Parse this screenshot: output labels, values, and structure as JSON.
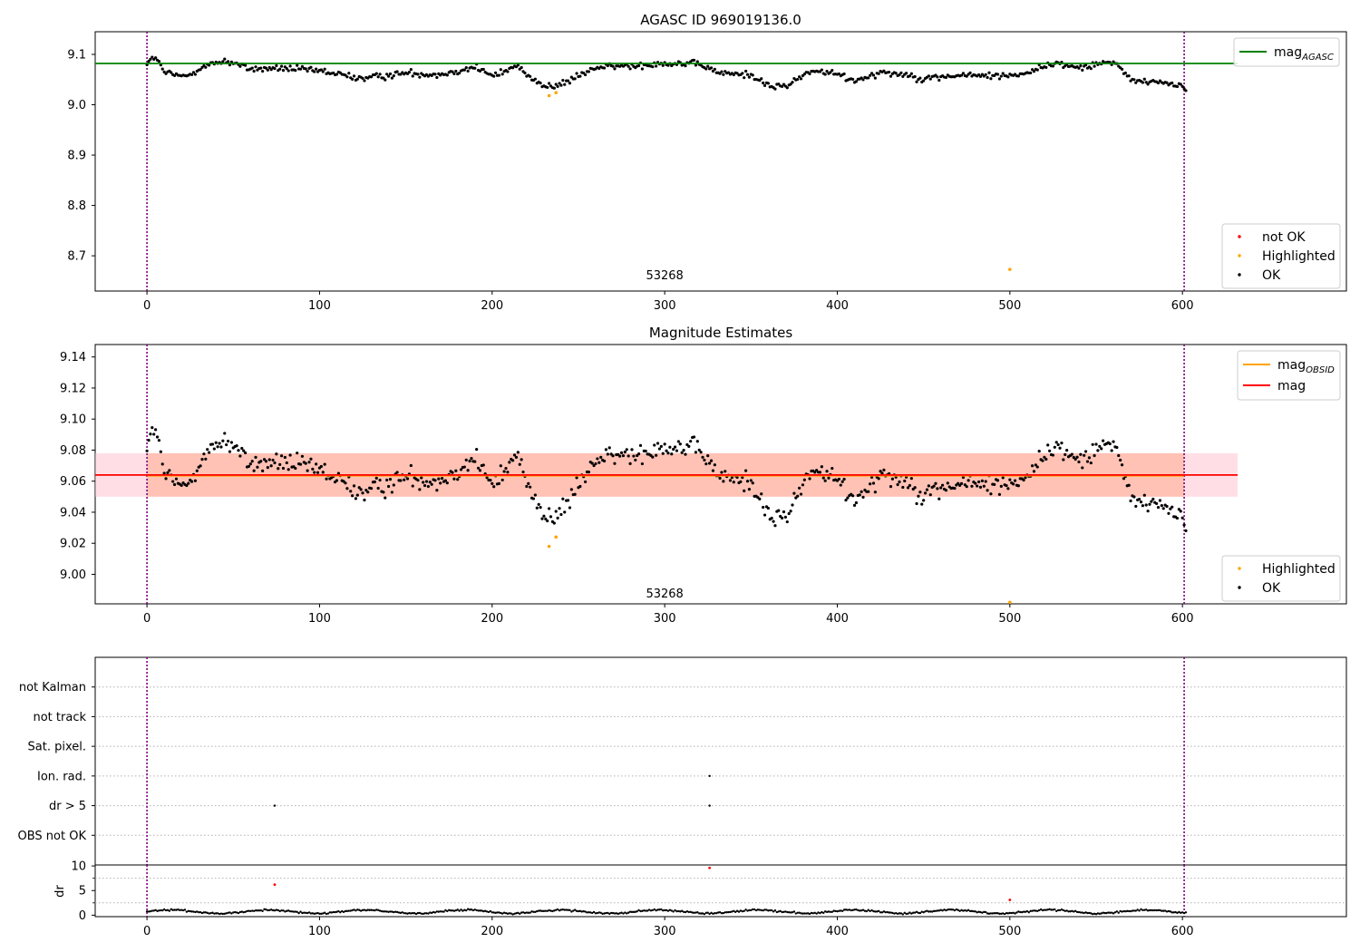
{
  "figure": {
    "colors": {
      "ok": "#000000",
      "highlight": "#ffa500",
      "not_ok": "#ff0000",
      "agasc": "#008000",
      "mag": "#ff0000",
      "obsid": "#ffa500",
      "band_outer": "#ffc0cb",
      "band_inner": "#ffa07a",
      "vline": "#800080",
      "grid": "#b0b0b0"
    }
  },
  "chart_data": [
    {
      "type": "scatter",
      "title": "AGASC ID 969019136.0",
      "xlim": [
        -30,
        695
      ],
      "ylim": [
        8.63,
        9.145
      ],
      "xticks": [
        "0",
        "100",
        "200",
        "300",
        "400",
        "500",
        "600"
      ],
      "xtick_values": [
        0,
        100,
        200,
        300,
        400,
        500,
        600
      ],
      "yticks": [
        "8.7",
        "8.8",
        "8.9",
        "9.0",
        "9.1"
      ],
      "ytick_values": [
        8.7,
        8.8,
        8.9,
        9.0,
        9.1
      ],
      "vlines": [
        0,
        601
      ],
      "obsid_label": {
        "text": "53268",
        "x": 300,
        "y": 8.653
      },
      "hline": {
        "name": "mag_AGASC",
        "y": 9.082,
        "x0": -30,
        "x1": 632
      },
      "legend_lines": [
        {
          "label": "mag",
          "sub": "AGASC",
          "color": "#008000"
        }
      ],
      "legend_points": [
        {
          "label": "not OK",
          "color": "#ff0000"
        },
        {
          "label": "Highlighted",
          "color": "#ffa500"
        },
        {
          "label": "OK",
          "color": "#000000"
        }
      ],
      "series": [
        {
          "name": "OK",
          "generated": {
            "x_start": 0,
            "x_end": 602,
            "step": 1,
            "base": 9.062,
            "noise": 0.01,
            "anchors": [
              [
                0,
                9.083
              ],
              [
                5,
                9.095
              ],
              [
                10,
                9.064
              ],
              [
                22,
                9.055
              ],
              [
                30,
                9.072
              ],
              [
                45,
                9.088
              ],
              [
                60,
                9.071
              ],
              [
                80,
                9.072
              ],
              [
                100,
                9.067
              ],
              [
                125,
                9.052
              ],
              [
                150,
                9.063
              ],
              [
                170,
                9.06
              ],
              [
                190,
                9.075
              ],
              [
                200,
                9.057
              ],
              [
                215,
                9.077
              ],
              [
                227,
                9.042
              ],
              [
                235,
                9.034
              ],
              [
                245,
                9.048
              ],
              [
                260,
                9.074
              ],
              [
                280,
                9.077
              ],
              [
                300,
                9.083
              ],
              [
                320,
                9.08
              ],
              [
                333,
                9.062
              ],
              [
                350,
                9.06
              ],
              [
                362,
                9.034
              ],
              [
                372,
                9.04
              ],
              [
                385,
                9.068
              ],
              [
                400,
                9.06
              ],
              [
                410,
                9.048
              ],
              [
                425,
                9.065
              ],
              [
                440,
                9.06
              ],
              [
                450,
                9.052
              ],
              [
                470,
                9.058
              ],
              [
                500,
                9.058
              ],
              [
                510,
                9.064
              ],
              [
                525,
                9.082
              ],
              [
                540,
                9.074
              ],
              [
                555,
                9.085
              ],
              [
                562,
                9.078
              ],
              [
                573,
                9.045
              ],
              [
                585,
                9.046
              ],
              [
                600,
                9.038
              ],
              [
                602,
                9.028
              ]
            ]
          }
        },
        {
          "name": "Highlighted",
          "points": [
            [
              233,
              9.018
            ],
            [
              237,
              9.024
            ],
            [
              500,
              8.673
            ]
          ]
        }
      ]
    },
    {
      "type": "scatter",
      "title": "Magnitude Estimates",
      "xlim": [
        -30,
        695
      ],
      "ylim": [
        8.981,
        9.148
      ],
      "xticks": [
        "0",
        "100",
        "200",
        "300",
        "400",
        "500",
        "600"
      ],
      "xtick_values": [
        0,
        100,
        200,
        300,
        400,
        500,
        600
      ],
      "yticks": [
        "9.00",
        "9.02",
        "9.04",
        "9.06",
        "9.08",
        "9.10",
        "9.12",
        "9.14"
      ],
      "ytick_values": [
        9.0,
        9.02,
        9.04,
        9.06,
        9.08,
        9.1,
        9.12,
        9.14
      ],
      "vlines": [
        0,
        601
      ],
      "obsid_label": {
        "text": "53268",
        "x": 300,
        "y": 8.985
      },
      "band_outer": {
        "y0": 9.05,
        "y1": 9.078,
        "x0": -30,
        "x1": 632
      },
      "band_inner": {
        "y0": 9.05,
        "y1": 9.078,
        "x0": 0,
        "x1": 601
      },
      "hline_mag": {
        "y": 9.064,
        "x0": -30,
        "x1": 632
      },
      "hline_obsid": {
        "y": 9.0636,
        "x0": 0,
        "x1": 601
      },
      "legend_lines": [
        {
          "label": "mag",
          "sub": "OBSID",
          "color": "#ffa500"
        },
        {
          "label": "mag",
          "sub": "",
          "color": "#ff0000"
        }
      ],
      "legend_points": [
        {
          "label": "Highlighted",
          "color": "#ffa500"
        },
        {
          "label": "OK",
          "color": "#000000"
        }
      ],
      "series": [
        {
          "name": "OK",
          "generated": {
            "x_start": 0,
            "x_end": 602,
            "step": 1,
            "base": 9.062,
            "noise": 0.01,
            "anchors": [
              [
                0,
                9.083
              ],
              [
                5,
                9.095
              ],
              [
                10,
                9.064
              ],
              [
                22,
                9.055
              ],
              [
                30,
                9.072
              ],
              [
                45,
                9.088
              ],
              [
                60,
                9.071
              ],
              [
                80,
                9.072
              ],
              [
                100,
                9.067
              ],
              [
                125,
                9.052
              ],
              [
                150,
                9.063
              ],
              [
                170,
                9.06
              ],
              [
                190,
                9.075
              ],
              [
                200,
                9.057
              ],
              [
                215,
                9.077
              ],
              [
                227,
                9.042
              ],
              [
                235,
                9.034
              ],
              [
                245,
                9.048
              ],
              [
                260,
                9.074
              ],
              [
                280,
                9.077
              ],
              [
                300,
                9.083
              ],
              [
                320,
                9.08
              ],
              [
                333,
                9.062
              ],
              [
                350,
                9.06
              ],
              [
                362,
                9.034
              ],
              [
                372,
                9.04
              ],
              [
                385,
                9.068
              ],
              [
                400,
                9.06
              ],
              [
                410,
                9.048
              ],
              [
                425,
                9.065
              ],
              [
                440,
                9.06
              ],
              [
                450,
                9.052
              ],
              [
                470,
                9.058
              ],
              [
                500,
                9.058
              ],
              [
                510,
                9.064
              ],
              [
                525,
                9.082
              ],
              [
                540,
                9.074
              ],
              [
                555,
                9.085
              ],
              [
                562,
                9.078
              ],
              [
                573,
                9.045
              ],
              [
                585,
                9.046
              ],
              [
                600,
                9.038
              ],
              [
                602,
                9.028
              ]
            ]
          }
        },
        {
          "name": "Highlighted",
          "points": [
            [
              233,
              9.018
            ],
            [
              237,
              9.024
            ],
            [
              500,
              8.982
            ]
          ]
        }
      ]
    },
    {
      "type": "scatter",
      "title": "",
      "xlim": [
        -30,
        695
      ],
      "categories": [
        "not Kalman",
        "not track",
        "Sat. pixel.",
        "Ion. rad.",
        "dr > 5",
        "OBS not OK"
      ],
      "category_y": [
        6,
        5,
        4,
        3,
        2,
        1
      ],
      "ylim": [
        0,
        7
      ],
      "vlines": [
        0,
        601
      ],
      "series": [
        {
          "name": "Ion. rad.",
          "points": [
            [
              326,
              3
            ]
          ]
        },
        {
          "name": "dr > 5",
          "points": [
            [
              74,
              2
            ],
            [
              326,
              2
            ]
          ]
        }
      ]
    },
    {
      "type": "scatter",
      "title": "",
      "ylabel": "dr",
      "xlim": [
        -30,
        695
      ],
      "ylim": [
        -0.3,
        10.2
      ],
      "xticks": [
        "0",
        "100",
        "200",
        "300",
        "400",
        "500",
        "600"
      ],
      "xtick_values": [
        0,
        100,
        200,
        300,
        400,
        500,
        600
      ],
      "yticks": [
        "0",
        "5",
        "10"
      ],
      "ytick_values": [
        0,
        5,
        10
      ],
      "vlines": [
        0,
        601
      ],
      "series": [
        {
          "name": "OK",
          "generated": {
            "x_start": 0,
            "x_end": 602,
            "step": 1,
            "base": 0.7,
            "noise": 0.25,
            "wave": 0.35,
            "anchors": []
          }
        },
        {
          "name": "not OK",
          "points": [
            [
              74,
              6.2
            ],
            [
              326,
              9.6
            ],
            [
              500,
              3.1
            ]
          ]
        }
      ]
    }
  ]
}
